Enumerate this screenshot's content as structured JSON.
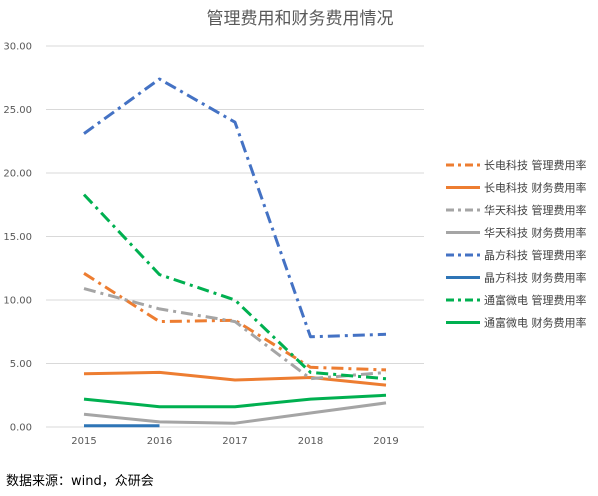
{
  "chart_data": {
    "type": "line",
    "title": "管理费用和财务费用情况",
    "x": [
      "2015",
      "2016",
      "2017",
      "2018",
      "2019"
    ],
    "ylim": [
      0,
      30
    ],
    "yticks": [
      "0.00",
      "5.00",
      "10.00",
      "15.00",
      "20.00",
      "25.00",
      "30.00"
    ],
    "grid": true,
    "legend_position": "right",
    "series": [
      {
        "name": "长电科技 管理费用率",
        "values": [
          12.1,
          8.3,
          8.4,
          4.7,
          4.5
        ],
        "color": "#ED7D31",
        "dash": "dashdot"
      },
      {
        "name": "长电科技 财务费用率",
        "values": [
          4.2,
          4.3,
          3.7,
          3.9,
          3.3
        ],
        "color": "#ED7D31",
        "dash": "solid"
      },
      {
        "name": "华天科技 管理费用率",
        "values": [
          10.9,
          9.3,
          8.3,
          3.8,
          4.3
        ],
        "color": "#A5A5A5",
        "dash": "dashdot"
      },
      {
        "name": "华天科技 财务费用率",
        "values": [
          1.0,
          0.4,
          0.3,
          1.1,
          1.9
        ],
        "color": "#A5A5A5",
        "dash": "solid"
      },
      {
        "name": "晶方科技 管理费用率",
        "values": [
          23.1,
          27.4,
          24.0,
          7.1,
          7.3
        ],
        "color": "#4472C4",
        "dash": "dashdot"
      },
      {
        "name": "晶方科技 财务费用率",
        "values": [
          0.1,
          0.1,
          null,
          null,
          null
        ],
        "color": "#2E75B6",
        "dash": "solid"
      },
      {
        "name": "通富微电 管理费用率",
        "values": [
          18.3,
          12.0,
          10.0,
          4.3,
          3.8
        ],
        "color": "#00B050",
        "dash": "dashdot"
      },
      {
        "name": "通富微电 财务费用率",
        "values": [
          2.2,
          1.6,
          1.6,
          2.2,
          2.5
        ],
        "color": "#00B050",
        "dash": "solid"
      }
    ]
  },
  "source_note": "数据来源：wind，众研会"
}
